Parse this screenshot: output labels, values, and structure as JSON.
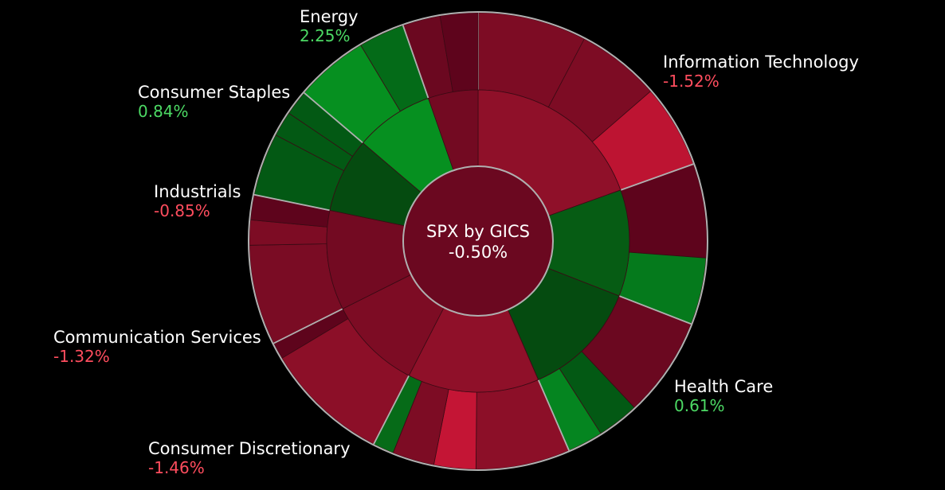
{
  "chart_data": {
    "type": "sunburst",
    "title": "SPX by GICS",
    "total_change": "-0.50%",
    "colors": {
      "label_positive": "#4cd964",
      "label_negative": "#ff4d5e",
      "border": "#b0b0b0",
      "center": "#6b0820"
    },
    "sectors": [
      {
        "name": "Information Technology",
        "change": "-1.52%",
        "color": "#8f1029",
        "children": [
          {
            "weight": 5.2,
            "color": "#7d0c24"
          },
          {
            "weight": 4.0,
            "color": "#7d0c24"
          },
          {
            "weight": 4.0,
            "color": "#bd1432"
          }
        ]
      },
      {
        "name": "Health Care",
        "change": "0.61%",
        "color": "#065c14",
        "children": [
          {
            "weight": 4.5,
            "color": "#5e041c"
          },
          {
            "weight": 3.2,
            "color": "#057a1c"
          }
        ]
      },
      {
        "name": "",
        "change": "",
        "color": "#054b10",
        "children": [
          {
            "weight": 4.8,
            "color": "#6b0820"
          },
          {
            "weight": 2.0,
            "color": "#035914"
          },
          {
            "weight": 1.7,
            "color": "#058520"
          }
        ]
      },
      {
        "name": "Consumer Discretionary",
        "change": "-1.46%",
        "color": "#8f1029",
        "children": [
          {
            "weight": 4.5,
            "color": "#8c0f28"
          },
          {
            "weight": 2.0,
            "color": "#c41535"
          },
          {
            "weight": 2.0,
            "color": "#7d0c24"
          },
          {
            "weight": 1.0,
            "color": "#066b18"
          }
        ]
      },
      {
        "name": "Communication Services",
        "change": "-1.32%",
        "color": "#7d0c24",
        "children": [
          {
            "weight": 6.0,
            "color": "#8c0f28"
          },
          {
            "weight": 0.8,
            "color": "#5e041c"
          }
        ]
      },
      {
        "name": "Industrials",
        "change": "-0.85%",
        "color": "#730a22",
        "children": [
          {
            "weight": 4.8,
            "color": "#7a0c24"
          },
          {
            "weight": 1.2,
            "color": "#7d0c24"
          },
          {
            "weight": 1.2,
            "color": "#5e041c"
          }
        ]
      },
      {
        "name": "Consumer Staples",
        "change": "0.84%",
        "color": "#054b10",
        "children": [
          {
            "weight": 3.0,
            "color": "#035914"
          },
          {
            "weight": 1.2,
            "color": "#035914"
          },
          {
            "weight": 1.2,
            "color": "#035914"
          }
        ]
      },
      {
        "name": "Energy",
        "change": "2.25%",
        "color": "#069020",
        "children": [
          {
            "weight": 3.5,
            "color": "#069020"
          },
          {
            "weight": 2.2,
            "color": "#046b18"
          }
        ]
      },
      {
        "name": "",
        "change": "",
        "color": "#730a22",
        "children": [
          {
            "weight": 1.8,
            "color": "#6b0820"
          },
          {
            "weight": 1.8,
            "color": "#5e041c"
          }
        ]
      }
    ]
  }
}
